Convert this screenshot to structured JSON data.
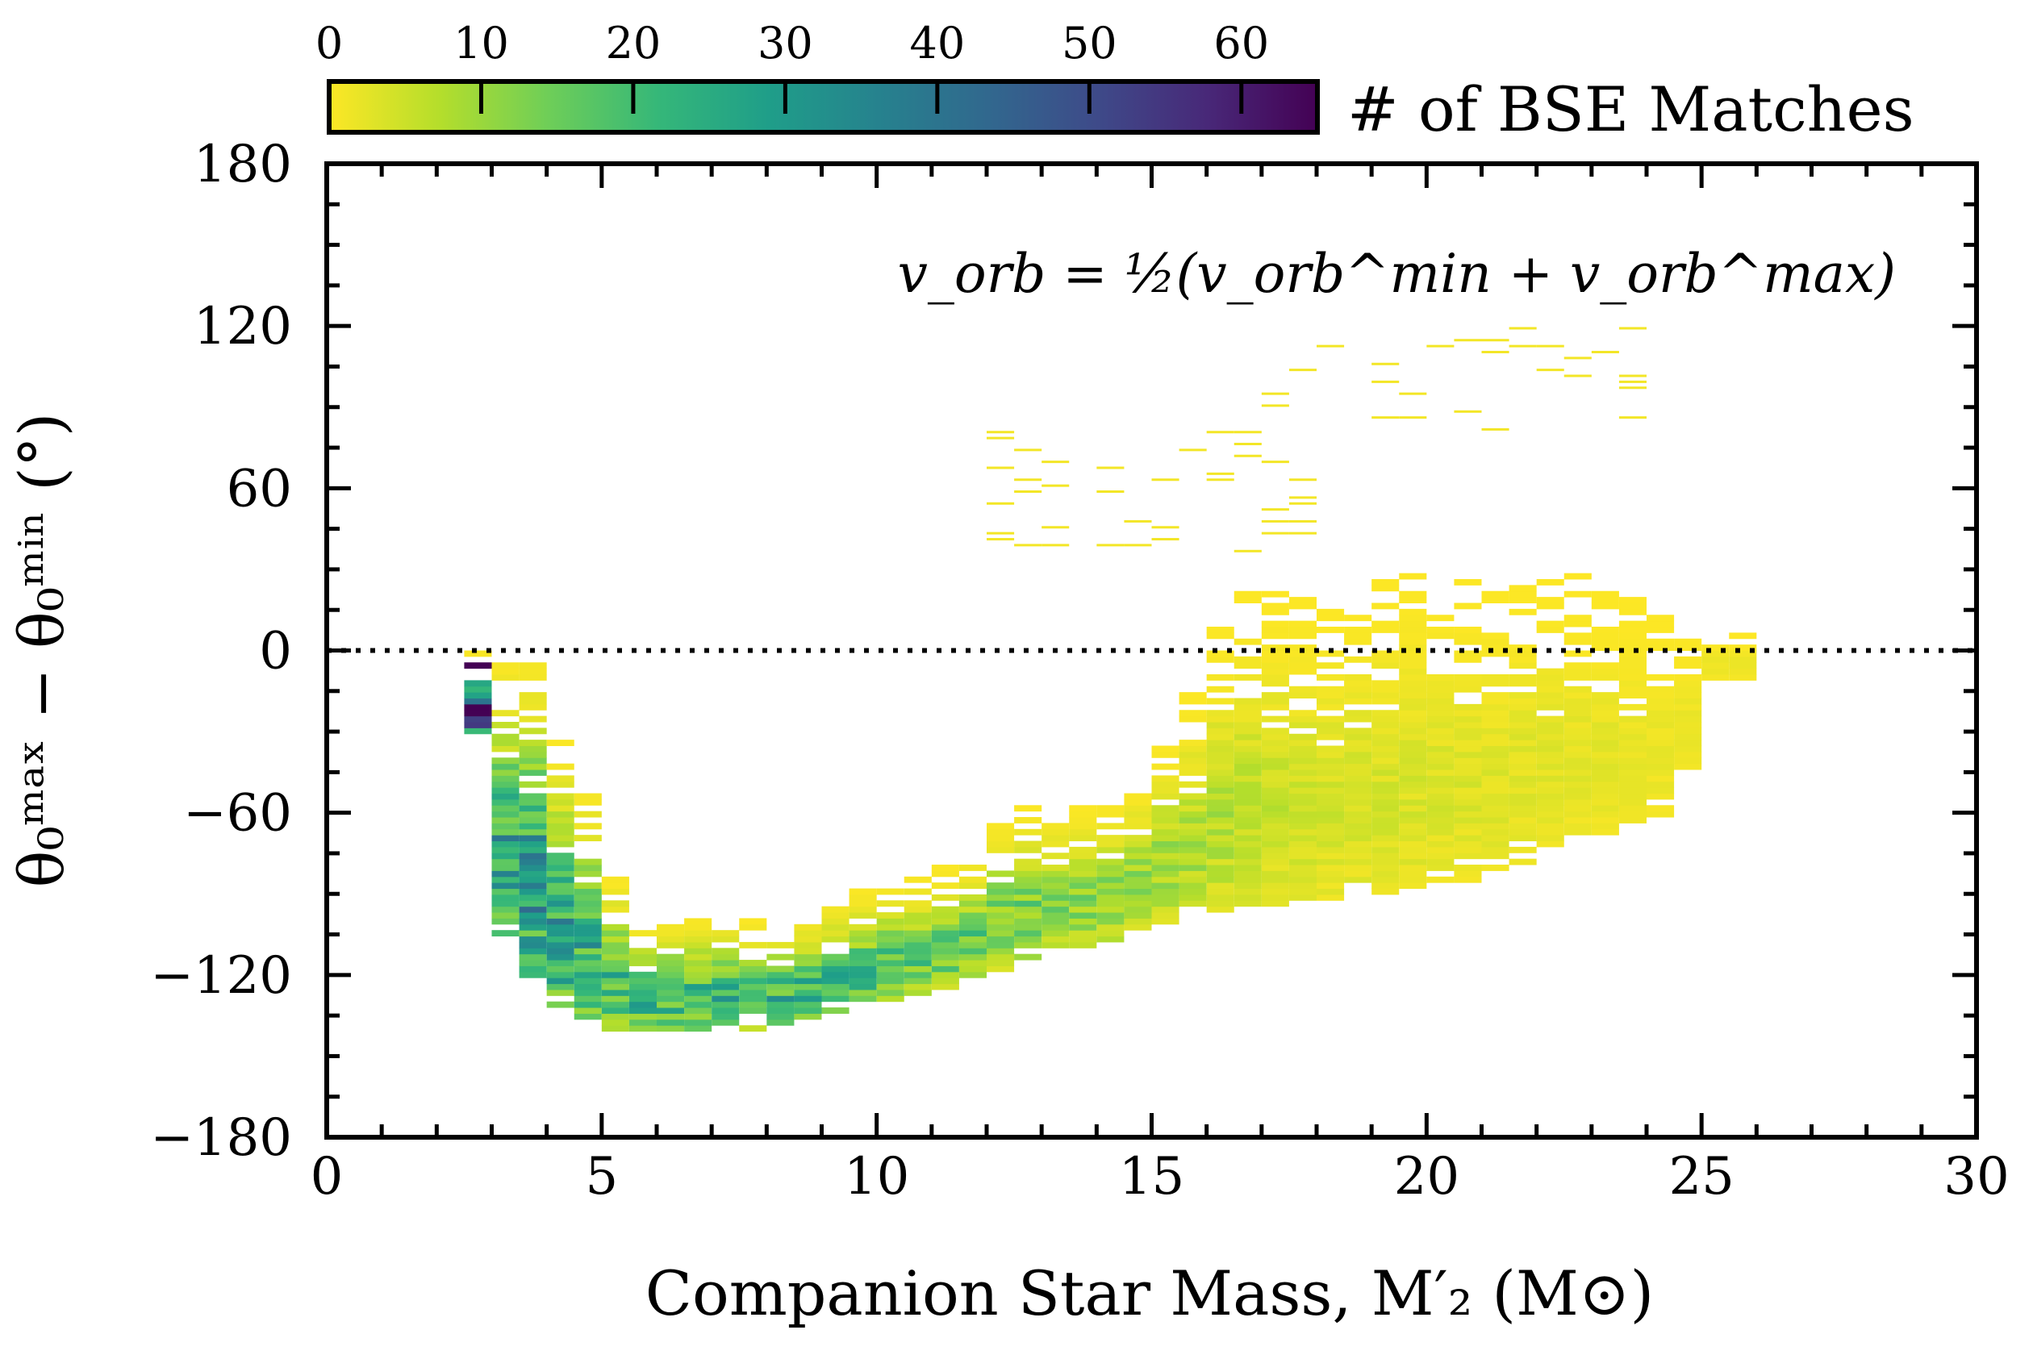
{
  "chart_data": {
    "type": "heatmap",
    "title": "",
    "xlabel": "Companion Star Mass, M′₂ (M⊙)",
    "ylabel": "θ₀ᵐᵃˣ − θ₀ᵐⁱⁿ (°)",
    "annotation": "v_orb = ½(v_orb^min + v_orb^max)",
    "xlim": [
      0,
      30
    ],
    "ylim": [
      -180,
      180
    ],
    "xticks": [
      0,
      5,
      10,
      15,
      20,
      25,
      30
    ],
    "xtick_labels": [
      "0",
      "5",
      "10",
      "15",
      "20",
      "25",
      "30"
    ],
    "yticks": [
      -180,
      -120,
      -60,
      0,
      60,
      120,
      180
    ],
    "ytick_labels": [
      "−180",
      "−120",
      "−60",
      "0",
      "60",
      "120",
      "180"
    ],
    "reference_line": {
      "y": 0,
      "style": "dotted"
    },
    "colorbar": {
      "label": "# of BSE Matches",
      "range": [
        0,
        65
      ],
      "ticks": [
        0,
        10,
        20,
        30,
        40,
        50,
        60
      ],
      "tick_labels": [
        "0",
        "10",
        "20",
        "30",
        "40",
        "50",
        "60"
      ],
      "colormap": "viridis_r"
    },
    "density_profile": {
      "description": "approximate envelope of the populated region per companion mass bin",
      "x": [
        2.75,
        3.25,
        3.75,
        4.25,
        4.75,
        5.5,
        6.5,
        7.5,
        8.5,
        9.5,
        10.5,
        11.5,
        12.5,
        13.5,
        14.5,
        15.5,
        16.5,
        17.5,
        18.5,
        19.5,
        20.5,
        21.5,
        22.5,
        23.5,
        24.5,
        25.25
      ],
      "lower": [
        -30,
        -105,
        -120,
        -133,
        -137,
        -140,
        -140,
        -140,
        -137,
        -133,
        -128,
        -123,
        -115,
        -110,
        -105,
        -98,
        -95,
        -93,
        -90,
        -88,
        -85,
        -80,
        -70,
        -65,
        -60,
        -10
      ],
      "upper": [
        -2,
        -5,
        -5,
        -35,
        -50,
        -102,
        -100,
        -100,
        -102,
        -90,
        -85,
        -80,
        -58,
        -58,
        -55,
        -28,
        20,
        20,
        20,
        30,
        25,
        22,
        30,
        20,
        15,
        5
      ],
      "peak_count": [
        65,
        35,
        40,
        35,
        30,
        28,
        30,
        30,
        28,
        25,
        22,
        20,
        18,
        15,
        14,
        12,
        8,
        6,
        5,
        5,
        4,
        4,
        3,
        3,
        2,
        2
      ]
    },
    "sparse_clusters": [
      {
        "x": [
          12,
          18
        ],
        "y": [
          35,
          80
        ],
        "count": 1
      },
      {
        "x": [
          16.5,
          24.5
        ],
        "y": [
          80,
          120
        ],
        "count": 1
      }
    ]
  }
}
